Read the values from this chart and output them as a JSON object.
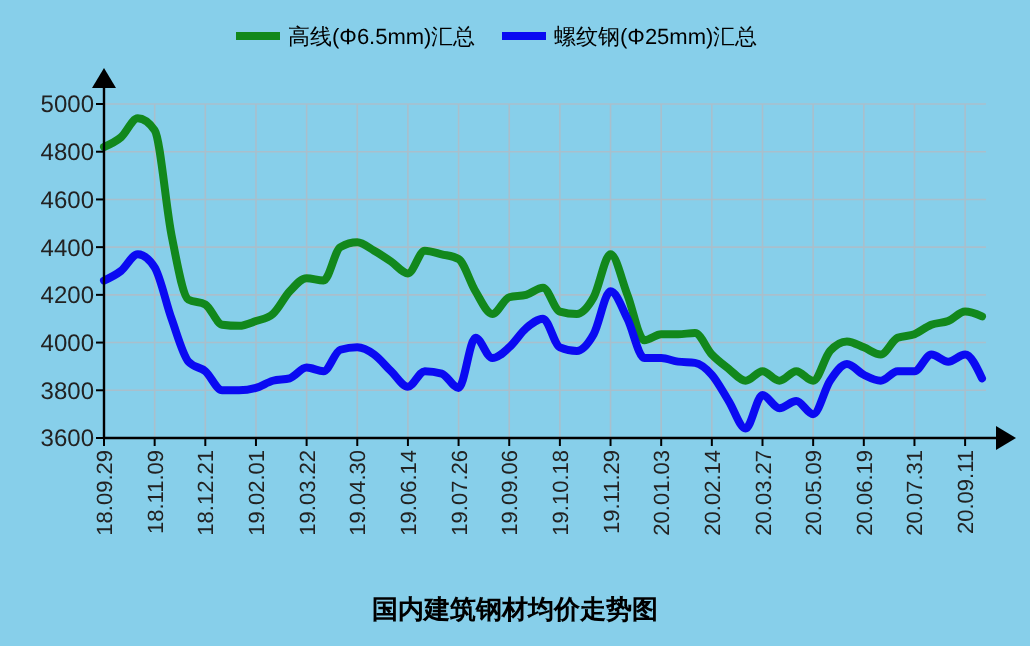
{
  "chart_data": {
    "type": "line",
    "title": "国内建筑钢材均价走势图",
    "categories": [
      "18.09.29",
      null,
      null,
      "18.11.09",
      null,
      null,
      "18.12.21",
      null,
      null,
      "19.02.01",
      null,
      null,
      "19.03.22",
      null,
      null,
      "19.04.30",
      null,
      null,
      "19.06.14",
      null,
      null,
      "19.07.26",
      null,
      null,
      "19.09.06",
      null,
      null,
      "19.10.18",
      null,
      null,
      "19.11.29",
      null,
      null,
      "20.01.03",
      null,
      null,
      "20.02.14",
      null,
      null,
      "20.03.27",
      null,
      null,
      "20.05.09",
      null,
      null,
      "20.06.19",
      null,
      null,
      "20.07.31",
      null,
      null,
      "20.09.11",
      null
    ],
    "series": [
      {
        "name": "高线(Φ6.5mm)汇总",
        "color": "#12881c",
        "values": [
          4820,
          4860,
          4940,
          4890,
          4450,
          4180,
          4160,
          4075,
          4070,
          4090,
          4120,
          4215,
          4270,
          4260,
          4400,
          4420,
          4385,
          4340,
          4290,
          4385,
          4370,
          4350,
          4215,
          4120,
          4190,
          4200,
          4230,
          4130,
          4120,
          4190,
          4370,
          4200,
          4010,
          4035,
          4035,
          4040,
          3950,
          3890,
          3840,
          3880,
          3840,
          3880,
          3840,
          3965,
          4005,
          3980,
          3950,
          4020,
          4035,
          4075,
          4090,
          4130,
          4110
        ]
      },
      {
        "name": "螺纹钢(Φ25mm)汇总",
        "color": "#0a0af2",
        "values": [
          4260,
          4300,
          4370,
          4315,
          4100,
          3920,
          3880,
          3800,
          3800,
          3810,
          3840,
          3850,
          3895,
          3880,
          3970,
          3980,
          3950,
          3880,
          3815,
          3880,
          3870,
          3810,
          4020,
          3935,
          3980,
          4060,
          4100,
          3980,
          3965,
          4035,
          4215,
          4100,
          3935,
          3935,
          3920,
          3915,
          3865,
          3755,
          3640,
          3780,
          3725,
          3755,
          3700,
          3840,
          3910,
          3865,
          3840,
          3880,
          3880,
          3950,
          3920,
          3950,
          3850
        ]
      }
    ],
    "ylim": [
      3600,
      5000
    ],
    "yticks": [
      3600,
      3800,
      4000,
      4200,
      4400,
      4600,
      4800,
      5000
    ],
    "grid": true,
    "legend": "top",
    "line_style": "solid",
    "marker": "none"
  }
}
